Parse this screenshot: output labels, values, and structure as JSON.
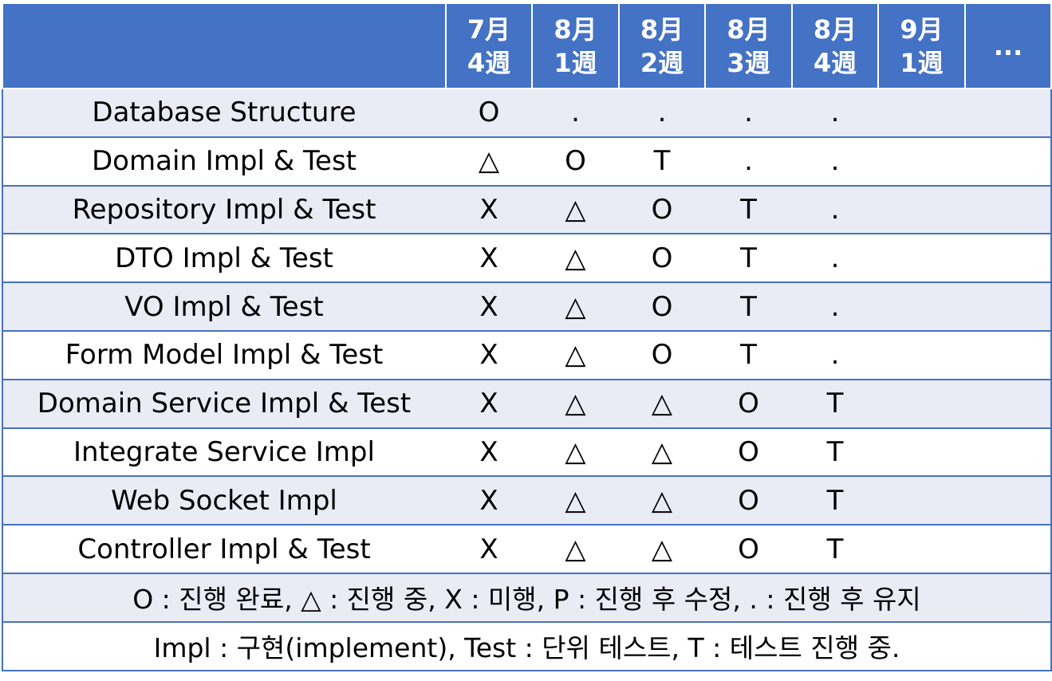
{
  "table": {
    "headers": [
      {
        "month": "",
        "week": ""
      },
      {
        "month": "7月",
        "week": "4週"
      },
      {
        "month": "8月",
        "week": "1週"
      },
      {
        "month": "8月",
        "week": "2週"
      },
      {
        "month": "8月",
        "week": "3週"
      },
      {
        "month": "8月",
        "week": "4週"
      },
      {
        "month": "9月",
        "week": "1週"
      },
      {
        "month": "...",
        "week": ""
      }
    ],
    "rows": [
      {
        "task": "Database Structure",
        "cells": [
          "O",
          ".",
          ".",
          ".",
          ".",
          "",
          ""
        ]
      },
      {
        "task": "Domain Impl & Test",
        "cells": [
          "△",
          "O",
          "T",
          ".",
          ".",
          "",
          ""
        ]
      },
      {
        "task": "Repository Impl & Test",
        "cells": [
          "X",
          "△",
          "O",
          "T",
          ".",
          "",
          ""
        ]
      },
      {
        "task": "DTO Impl & Test",
        "cells": [
          "X",
          "△",
          "O",
          "T",
          ".",
          "",
          ""
        ]
      },
      {
        "task": "VO Impl & Test",
        "cells": [
          "X",
          "△",
          "O",
          "T",
          ".",
          "",
          ""
        ]
      },
      {
        "task": "Form Model Impl & Test",
        "cells": [
          "X",
          "△",
          "O",
          "T",
          ".",
          "",
          ""
        ]
      },
      {
        "task": "Domain Service Impl & Test",
        "cells": [
          "X",
          "△",
          "△",
          "O",
          "T",
          "",
          ""
        ]
      },
      {
        "task": "Integrate Service Impl",
        "cells": [
          "X",
          "△",
          "△",
          "O",
          "T",
          "",
          ""
        ]
      },
      {
        "task": "Web Socket Impl",
        "cells": [
          "X",
          "△",
          "△",
          "O",
          "T",
          "",
          ""
        ]
      },
      {
        "task": "Controller Impl & Test",
        "cells": [
          "X",
          "△",
          "△",
          "O",
          "T",
          "",
          ""
        ]
      }
    ],
    "legend": [
      "O : 진행 완료, △ : 진행 중, X : 미행, P : 진행 후 수정, . : 진행 후 유지",
      "Impl : 구현(implement), Test : 단위 테스트, T : 테스트 진행 중."
    ]
  },
  "colors": {
    "header_bg": "#4472c4",
    "row_band": "#e9ebf5",
    "row_plain": "#ffffff",
    "grid_line": "#4472c4"
  }
}
